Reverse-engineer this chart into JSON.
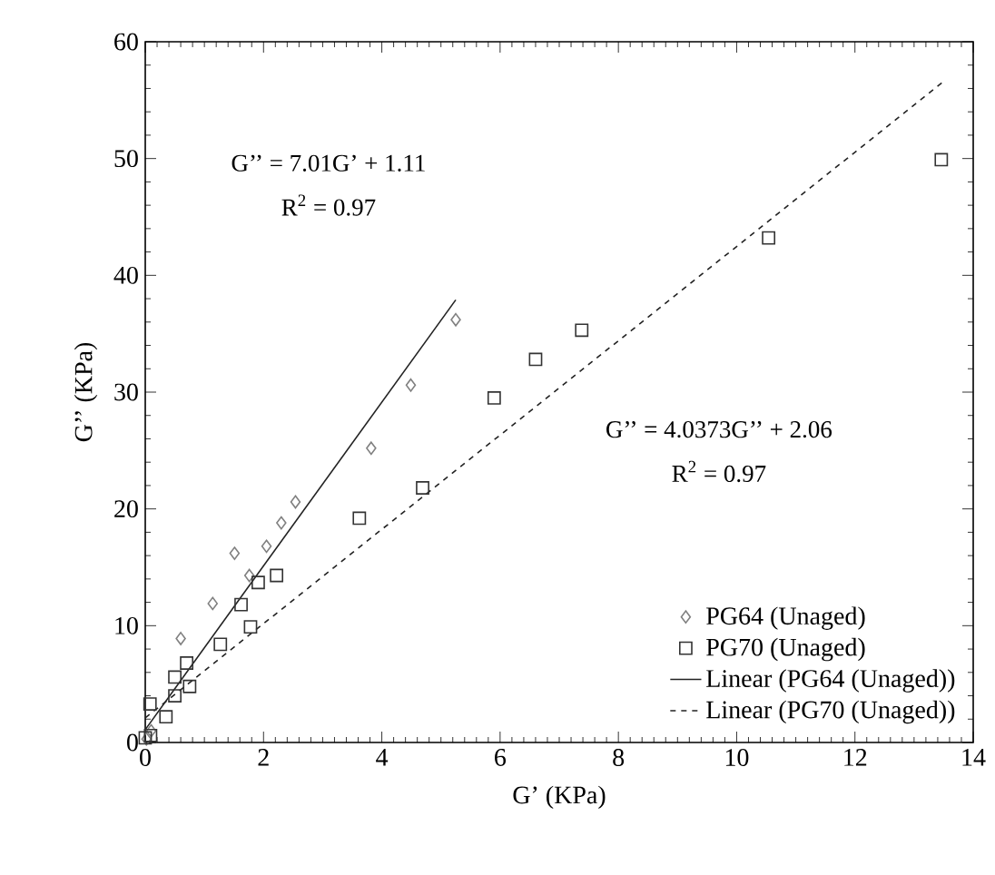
{
  "chart_data": {
    "type": "scatter",
    "xlabel": "G’ (KPa)",
    "ylabel": "G’’ (KPa)",
    "xlim": [
      0,
      14
    ],
    "ylim": [
      0,
      60
    ],
    "xticks": [
      0,
      2,
      4,
      6,
      8,
      10,
      12,
      14
    ],
    "yticks": [
      0,
      10,
      20,
      30,
      40,
      50,
      60
    ],
    "grid": false,
    "legend": "bottom right",
    "annotations": [
      "G’’ = 7.01G’ + 1.11",
      "R$^{2}$ = 0.97",
      "G’’ = 4.0373G’’ + 2.06",
      "R$^{2}$ = 0.97"
    ],
    "series": [
      {
        "name": "PG64 (Unaged)",
        "marker": "diamond",
        "color": "#808080",
        "x": [
          0.02,
          0.1,
          0.6,
          1.14,
          1.51,
          1.76,
          2.05,
          2.3,
          2.54,
          3.82,
          4.49,
          5.25
        ],
        "values": [
          0.3,
          1.0,
          8.9,
          11.9,
          16.2,
          14.3,
          16.8,
          18.8,
          20.6,
          25.2,
          30.6,
          36.2
        ]
      },
      {
        "name": "PG70 (Unaged)",
        "marker": "square",
        "color": "#333333",
        "x": [
          0,
          0.09,
          0.35,
          0.08,
          0.5,
          0.75,
          0.5,
          0.7,
          1.27,
          1.78,
          1.62,
          1.91,
          2.22,
          3.62,
          4.69,
          5.9,
          6.6,
          7.38,
          10.54,
          13.46
        ],
        "values": [
          0.4,
          0.6,
          2.2,
          3.3,
          4.0,
          4.8,
          5.6,
          6.8,
          8.4,
          9.9,
          11.8,
          13.7,
          14.3,
          19.2,
          21.8,
          29.5,
          32.8,
          35.3,
          43.2,
          49.9
        ]
      },
      {
        "name": "Linear (PG64 (Unaged))",
        "type": "line",
        "marker": "none",
        "line_style": "solid",
        "color": "#222222",
        "x": [
          0,
          5.25
        ],
        "values": [
          1.1,
          37.9
        ]
      },
      {
        "name": "Linear (PG70 (Unaged))",
        "type": "line",
        "marker": "none",
        "line_style": "dashed",
        "color": "#222222",
        "x": [
          0,
          13.5
        ],
        "values": [
          2.1,
          56.6
        ]
      }
    ]
  }
}
